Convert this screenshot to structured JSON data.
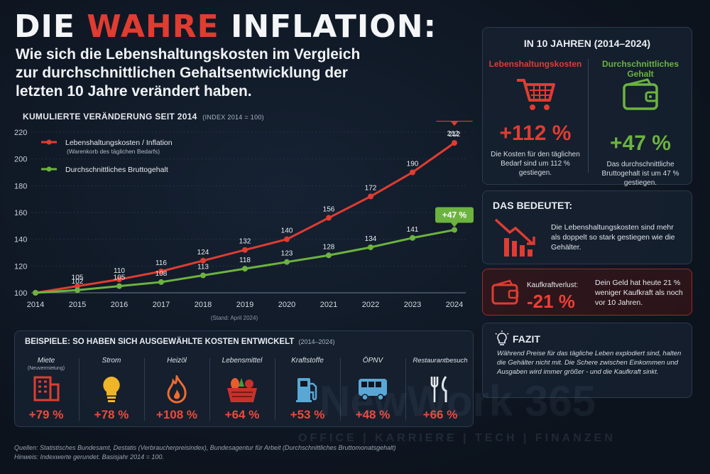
{
  "header": {
    "title_part1": "DIE",
    "title_accent": "WAHRE",
    "title_part2": "INFLATION:",
    "subtitle": "Wie sich die Lebenshaltungskosten im Vergleich zur durchschnittlichen Gehaltsentwicklung der letzten 10 Jahre verändert haben."
  },
  "chart_heading": {
    "main": "KUMULIERTE VERÄNDERUNG SEIT 2014",
    "note": "(INDEX 2014 = 100)"
  },
  "chart_data": {
    "type": "line",
    "x": [
      "2014",
      "2015",
      "2016",
      "2017",
      "2018",
      "2019",
      "2020",
      "2021",
      "2022",
      "2023",
      "2024"
    ],
    "ylim": [
      100,
      220
    ],
    "yticks": [
      100,
      120,
      140,
      160,
      180,
      200,
      220
    ],
    "grid": true,
    "legend": "top-left",
    "note": "(Stand: April 2024)",
    "series": [
      {
        "name": "Lebenshaltungskosten / Inflation",
        "name_sub": "(Warenkorb des täglichen Bedarfs)",
        "color": "#e03c31",
        "values": [
          100,
          105,
          110,
          116,
          124,
          132,
          140,
          156,
          172,
          190,
          212
        ],
        "labels": [
          "",
          "105",
          "110",
          "116",
          "124",
          "132",
          "140",
          "156",
          "172",
          "190",
          "212"
        ],
        "badge": "+112 %"
      },
      {
        "name": "Durchschnittliches Bruttogehalt",
        "color": "#6cb33f",
        "values": [
          100,
          102,
          105,
          108,
          113,
          118,
          123,
          128,
          134,
          141,
          147
        ],
        "labels": [
          "",
          "102",
          "105",
          "108",
          "113",
          "118",
          "123",
          "128",
          "134",
          "141",
          ""
        ],
        "badge": "+47 %"
      }
    ]
  },
  "summary": {
    "title": "IN 10 JAHREN (2014–2024)",
    "left": {
      "heading": "Lebenshaltungskosten",
      "icon": "shopping-cart-icon",
      "value": "+112 %",
      "desc": "Die Kosten für den täglichen Bedarf sind um 112 % gestiegen."
    },
    "right": {
      "heading": "Durchschnittliches Gehalt",
      "icon": "wallet-icon",
      "value": "+47 %",
      "desc": "Das durchschnittliche Bruttogehalt ist um 47 % gestiegen."
    }
  },
  "meaning": {
    "title": "DAS BEDEUTET:",
    "icon": "declining-chart-icon",
    "text": "Die Lebenshaltungskosten sind mehr als doppelt so stark gestiegen wie die Gehälter."
  },
  "loss": {
    "icon": "wallet-icon",
    "label": "Kaufkraftverlust:",
    "value": "-21 %",
    "text": "Dein Geld hat heute 21 % weniger Kaufkraft als noch vor 10 Jahren."
  },
  "fazit": {
    "title": "FAZIT",
    "icon": "lightbulb-icon",
    "text": "Während Preise für das tägliche Leben explodiert sind, halten die Gehälter nicht mit. Die Schere zwischen Einkommen und Ausgaben wird immer größer - und die Kaufkraft sinkt."
  },
  "examples": {
    "title": "BEISPIELE: SO HABEN SICH AUSGEWÄHLTE KOSTEN ENTWICKELT",
    "note": "(2014–2024)",
    "items": [
      {
        "label": "Miete",
        "sub": "(Neuvermietung)",
        "icon": "building-icon",
        "value": "+79 %"
      },
      {
        "label": "Strom",
        "sub": "",
        "icon": "lightbulb-icon",
        "value": "+78 %"
      },
      {
        "label": "Heizöl",
        "sub": "",
        "icon": "flame-icon",
        "value": "+108 %"
      },
      {
        "label": "Lebensmittel",
        "sub": "",
        "icon": "grocery-basket-icon",
        "value": "+64 %"
      },
      {
        "label": "Kraftstoffe",
        "sub": "",
        "icon": "fuel-pump-icon",
        "value": "+53 %"
      },
      {
        "label": "ÖPNV",
        "sub": "",
        "icon": "bus-icon",
        "value": "+48 %"
      },
      {
        "label": "Restaurantbesuch",
        "sub": "",
        "icon": "cutlery-icon",
        "value": "+66 %"
      }
    ]
  },
  "sources": {
    "line1": "Quellen: Statistisches Bundesamt, Destatis (Verbraucherpreisindex), Bundesagentur für Arbeit (Durchschnittliches Bruttomonatsgehalt)",
    "line2": "Hinweis: Indexwerte gerundet. Basisjahr 2014 = 100."
  },
  "watermark": {
    "brand": "NewWork 365",
    "tagline": "OFFICE | KARRIERE | TECH | FINANZEN"
  },
  "colors": {
    "red": "#e03c31",
    "green": "#6cb33f",
    "background": "#0e1622"
  }
}
